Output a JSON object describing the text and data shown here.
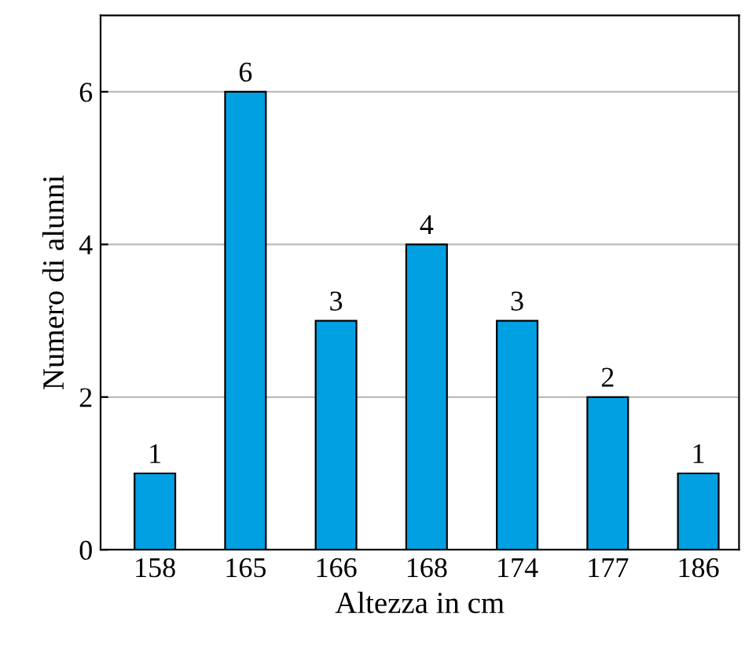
{
  "chart_data": {
    "type": "bar",
    "xlabel": "Altezza in cm",
    "ylabel": "Numero di alunni",
    "categories": [
      "158",
      "165",
      "166",
      "168",
      "174",
      "177",
      "186"
    ],
    "values": [
      1,
      6,
      3,
      4,
      3,
      2,
      1
    ],
    "color": "#00a0e3",
    "ylim": [
      0,
      7
    ],
    "yticks": [
      0,
      2,
      4,
      6
    ],
    "grid": "y",
    "data_labels": true
  }
}
